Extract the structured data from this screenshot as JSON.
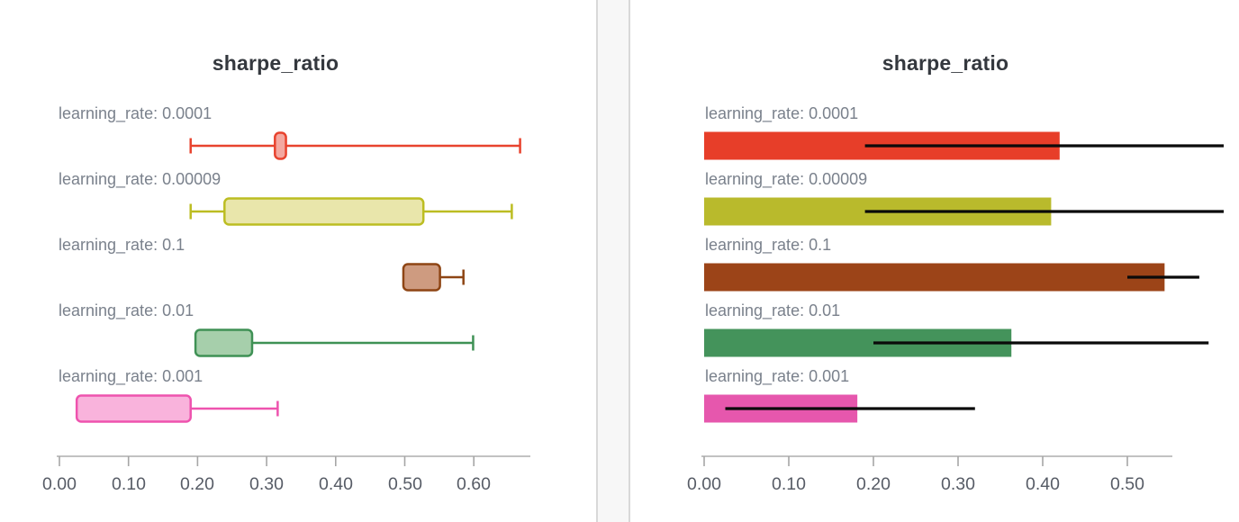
{
  "chart_data": [
    {
      "type": "boxplot",
      "title": "sharpe_ratio",
      "orientation": "horizontal",
      "grid": false,
      "xlim": [
        0,
        0.68
      ],
      "x_tick_labels": [
        "0.00",
        "0.10",
        "0.20",
        "0.30",
        "0.40",
        "0.50",
        "0.60"
      ],
      "x_tick_values": [
        0,
        0.1,
        0.2,
        0.3,
        0.4,
        0.5,
        0.6
      ],
      "categories": [
        "learning_rate: 0.0001",
        "learning_rate: 0.00009",
        "learning_rate: 0.1",
        "learning_rate: 0.01",
        "learning_rate: 0.001"
      ],
      "series": [
        {
          "label": "learning_rate: 0.0001",
          "whisker_min": 0.19,
          "box_lo": 0.312,
          "box_hi": 0.328,
          "whisker_max": 0.667,
          "stroke": "#e8432e",
          "fill": "#f4a8a0"
        },
        {
          "label": "learning_rate: 0.00009",
          "whisker_min": 0.19,
          "box_lo": 0.239,
          "box_hi": 0.527,
          "whisker_max": 0.655,
          "stroke": "#bcbd22",
          "fill": "#e9e6ab"
        },
        {
          "label": "learning_rate: 0.1",
          "whisker_min": null,
          "box_lo": 0.498,
          "box_hi": 0.551,
          "whisker_max": 0.585,
          "stroke": "#8e4514",
          "fill": "#ce9b80"
        },
        {
          "label": "learning_rate: 0.01",
          "whisker_min": null,
          "box_lo": 0.197,
          "box_hi": 0.279,
          "whisker_max": 0.599,
          "stroke": "#3f9155",
          "fill": "#a6cfab"
        },
        {
          "label": "learning_rate: 0.001",
          "whisker_min": null,
          "box_lo": 0.025,
          "box_hi": 0.19,
          "whisker_max": 0.316,
          "stroke": "#ee53ae",
          "fill": "#f9b3dc"
        }
      ]
    },
    {
      "type": "bar",
      "title": "sharpe_ratio",
      "orientation": "horizontal",
      "grid": false,
      "xlim": [
        0,
        0.553
      ],
      "x_tick_labels": [
        "0.00",
        "0.10",
        "0.20",
        "0.30",
        "0.40",
        "0.50"
      ],
      "x_tick_values": [
        0,
        0.1,
        0.2,
        0.3,
        0.4,
        0.5
      ],
      "error_bar_color": "#0a0a0a",
      "categories": [
        "learning_rate: 0.0001",
        "learning_rate: 0.00009",
        "learning_rate: 0.1",
        "learning_rate: 0.01",
        "learning_rate: 0.001"
      ],
      "series": [
        {
          "label": "learning_rate: 0.0001",
          "value": 0.42,
          "error_min": 0.19,
          "error_max": 0.667,
          "color": "#e73e29"
        },
        {
          "label": "learning_rate: 0.00009",
          "value": 0.41,
          "error_min": 0.19,
          "error_max": 0.655,
          "color": "#b9ba2c"
        },
        {
          "label": "learning_rate: 0.1",
          "value": 0.544,
          "error_min": 0.5,
          "error_max": 0.585,
          "color": "#9c4418"
        },
        {
          "label": "learning_rate: 0.01",
          "value": 0.363,
          "error_min": 0.2,
          "error_max": 0.596,
          "color": "#44935b"
        },
        {
          "label": "learning_rate: 0.001",
          "value": 0.181,
          "error_min": 0.025,
          "error_max": 0.32,
          "color": "#e657ad"
        }
      ]
    }
  ]
}
